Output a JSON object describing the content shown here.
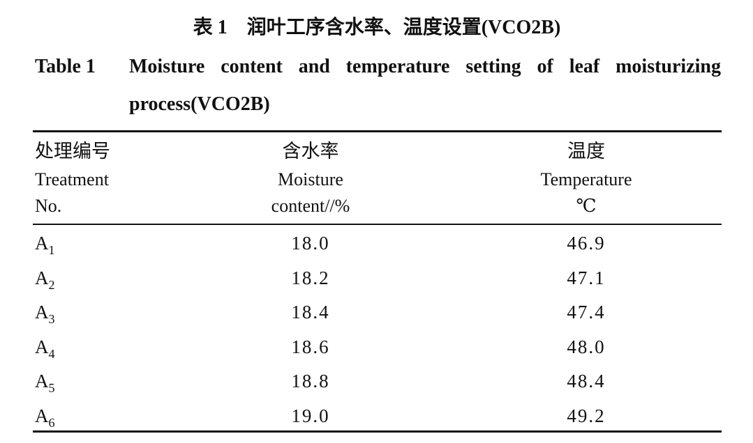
{
  "header": {
    "title_cn": "表 1　润叶工序含水率、温度设置(VCO2B)",
    "label_en": "Table 1",
    "title_en_line1": "Moisture content and temperature setting of leaf moisturizing",
    "title_en_line2": "process(VCO2B)"
  },
  "table": {
    "columns": [
      {
        "cn": "处理编号",
        "en1": "Treatment",
        "en2": "No."
      },
      {
        "cn": "含水率",
        "en1": "Moisture",
        "en2": "content//%"
      },
      {
        "cn": "温度",
        "en1": "Temperature",
        "en2": "℃"
      }
    ],
    "rows": [
      {
        "letter": "A",
        "sub": "1",
        "moisture": "18.0",
        "temperature": "46.9"
      },
      {
        "letter": "A",
        "sub": "2",
        "moisture": "18.2",
        "temperature": "47.1"
      },
      {
        "letter": "A",
        "sub": "3",
        "moisture": "18.4",
        "temperature": "47.4"
      },
      {
        "letter": "A",
        "sub": "4",
        "moisture": "18.6",
        "temperature": "48.0"
      },
      {
        "letter": "A",
        "sub": "5",
        "moisture": "18.8",
        "temperature": "48.4"
      },
      {
        "letter": "A",
        "sub": "6",
        "moisture": "19.0",
        "temperature": "49.2"
      }
    ]
  }
}
